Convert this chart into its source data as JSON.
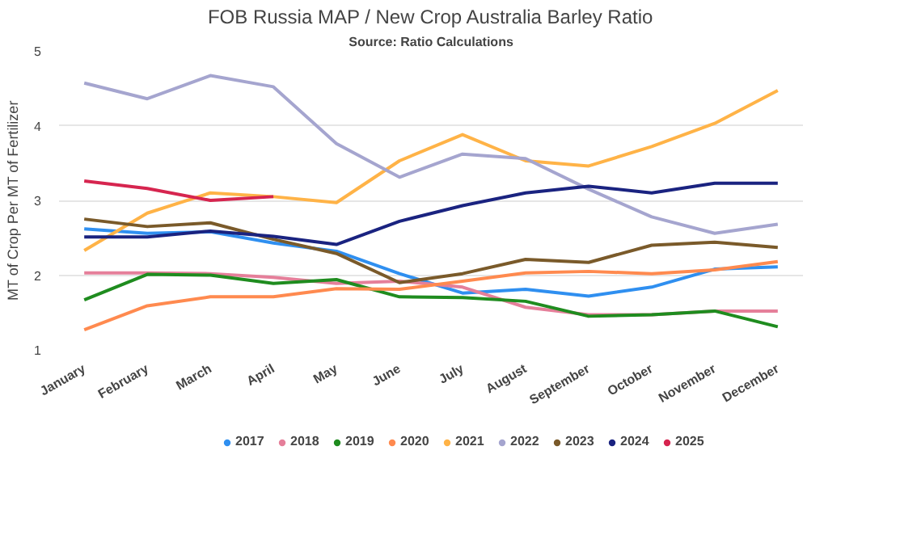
{
  "chart_data": {
    "type": "line",
    "title": "FOB Russia MAP / New Crop Australia Barley Ratio",
    "subtitle": "Source: Ratio Calculations",
    "ylabel": "MT of Crop Per MT of Fertilizer",
    "categories": [
      "January",
      "February",
      "March",
      "April",
      "May",
      "June",
      "July",
      "August",
      "September",
      "October",
      "November",
      "December"
    ],
    "ylim": [
      1,
      5
    ],
    "yticks": [
      1,
      2,
      3,
      4,
      5
    ],
    "grid": "y",
    "legend": "bottom",
    "marker": "none",
    "line_style": "solid",
    "series": [
      {
        "name": "2017",
        "color": "#2f8ff0",
        "values": [
          2.62,
          2.56,
          2.58,
          2.43,
          2.32,
          2.02,
          1.76,
          1.81,
          1.72,
          1.84,
          2.08,
          2.11
        ]
      },
      {
        "name": "2018",
        "color": "#e57f9a",
        "values": [
          2.03,
          2.03,
          2.02,
          1.97,
          1.89,
          1.92,
          1.84,
          1.57,
          1.47,
          1.47,
          1.52,
          1.52
        ]
      },
      {
        "name": "2019",
        "color": "#1f8c1f",
        "values": [
          1.67,
          2.01,
          2.0,
          1.89,
          1.94,
          1.71,
          1.7,
          1.65,
          1.45,
          1.47,
          1.52,
          1.31
        ]
      },
      {
        "name": "2020",
        "color": "#ff8a4f",
        "values": [
          1.27,
          1.59,
          1.71,
          1.71,
          1.82,
          1.81,
          1.92,
          2.03,
          2.05,
          2.02,
          2.07,
          2.18
        ]
      },
      {
        "name": "2021",
        "color": "#ffb347",
        "values": [
          2.33,
          2.83,
          3.1,
          3.05,
          2.97,
          3.53,
          3.88,
          3.53,
          3.46,
          3.72,
          4.03,
          4.47
        ]
      },
      {
        "name": "2022",
        "color": "#a5a5cf",
        "values": [
          4.57,
          4.36,
          4.67,
          4.52,
          3.76,
          3.31,
          3.62,
          3.56,
          3.15,
          2.78,
          2.56,
          2.68
        ]
      },
      {
        "name": "2023",
        "color": "#7a5a2a",
        "values": [
          2.75,
          2.65,
          2.7,
          2.48,
          2.29,
          1.9,
          2.02,
          2.21,
          2.17,
          2.4,
          2.44,
          2.37
        ]
      },
      {
        "name": "2024",
        "color": "#1a2380",
        "values": [
          2.51,
          2.51,
          2.59,
          2.52,
          2.41,
          2.72,
          2.93,
          3.1,
          3.19,
          3.1,
          3.23,
          3.23
        ]
      },
      {
        "name": "2025",
        "color": "#d6254f",
        "values": [
          3.26,
          3.16,
          3.0,
          3.05,
          null,
          null,
          null,
          null,
          null,
          null,
          null,
          null
        ]
      }
    ]
  }
}
